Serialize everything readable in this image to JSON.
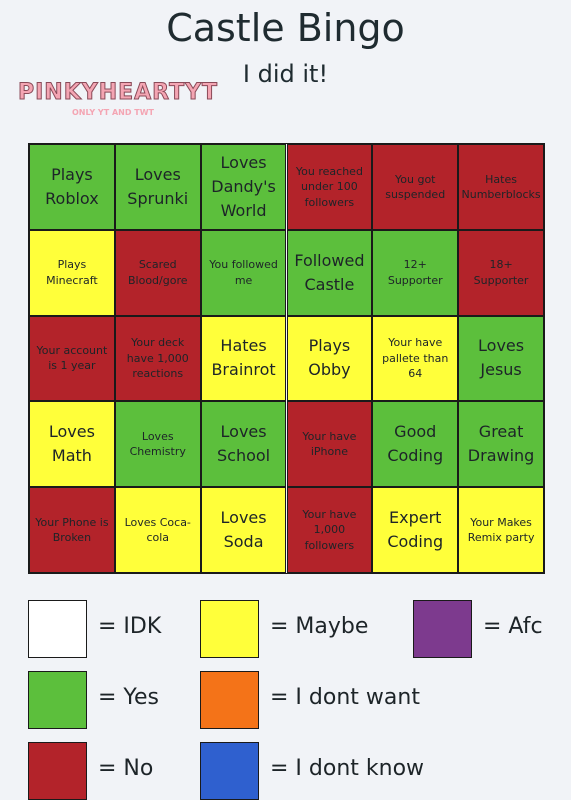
{
  "header": {
    "title": "Castle Bingo",
    "subtitle": "I did it!",
    "watermark": "PINKYHEARTYT",
    "watermark_note": "ONLY YT AND TWT"
  },
  "grid": {
    "columns": 6,
    "cells": [
      {
        "text": "Plays Roblox",
        "color": "#5cbf3c",
        "large": true
      },
      {
        "text": "Loves Sprunki",
        "color": "#5cbf3c",
        "large": true
      },
      {
        "text": "Loves Dandy's World",
        "color": "#5cbf3c",
        "large": true
      },
      {
        "text": "You reached under 100 followers",
        "color": "#b3232a",
        "large": false
      },
      {
        "text": "You got suspended",
        "color": "#b3232a",
        "large": false
      },
      {
        "text": "Hates Numberblocks",
        "color": "#b3232a",
        "large": false
      },
      {
        "text": "Plays Minecraft",
        "color": "#ffff3a",
        "large": false
      },
      {
        "text": "Scared Blood/gore",
        "color": "#b3232a",
        "large": false
      },
      {
        "text": "You followed me",
        "color": "#5cbf3c",
        "large": false
      },
      {
        "text": "Followed Castle",
        "color": "#5cbf3c",
        "large": true
      },
      {
        "text": "12+ Supporter",
        "color": "#5cbf3c",
        "large": false
      },
      {
        "text": "18+ Supporter",
        "color": "#b3232a",
        "large": false
      },
      {
        "text": "Your account is 1 year",
        "color": "#b3232a",
        "large": false
      },
      {
        "text": "Your deck have 1,000 reactions",
        "color": "#b3232a",
        "large": false
      },
      {
        "text": "Hates Brainrot",
        "color": "#ffff3a",
        "large": true
      },
      {
        "text": "Plays Obby",
        "color": "#ffff3a",
        "large": true
      },
      {
        "text": "Your have pallete than 64",
        "color": "#ffff3a",
        "large": false
      },
      {
        "text": "Loves Jesus",
        "color": "#5cbf3c",
        "large": true
      },
      {
        "text": "Loves Math",
        "color": "#ffff3a",
        "large": true
      },
      {
        "text": "Loves Chemistry",
        "color": "#5cbf3c",
        "large": false
      },
      {
        "text": "Loves School",
        "color": "#5cbf3c",
        "large": true
      },
      {
        "text": "Your have iPhone",
        "color": "#b3232a",
        "large": false
      },
      {
        "text": "Good Coding",
        "color": "#5cbf3c",
        "large": true
      },
      {
        "text": "Great Drawing",
        "color": "#5cbf3c",
        "large": true
      },
      {
        "text": "Your Phone is Broken",
        "color": "#b3232a",
        "large": false
      },
      {
        "text": "Loves Coca-cola",
        "color": "#ffff3a",
        "large": false
      },
      {
        "text": "Loves Soda",
        "color": "#ffff3a",
        "large": true
      },
      {
        "text": "Your have 1,000 followers",
        "color": "#b3232a",
        "large": false
      },
      {
        "text": "Expert Coding",
        "color": "#ffff3a",
        "large": true
      },
      {
        "text": "Your Makes Remix party",
        "color": "#ffff3a",
        "large": false
      }
    ]
  },
  "legend": [
    {
      "label": "= IDK",
      "color": "#ffffff"
    },
    {
      "label": "= Maybe",
      "color": "#ffff3a"
    },
    {
      "label": "= Afc",
      "color": "#7d3a8e"
    },
    {
      "label": "= Yes",
      "color": "#5cbf3c"
    },
    {
      "label": "= I dont want",
      "color": "#f47318"
    },
    {
      "label": "= No",
      "color": "#b3232a"
    },
    {
      "label": "= I dont know",
      "color": "#2f60cf"
    }
  ]
}
